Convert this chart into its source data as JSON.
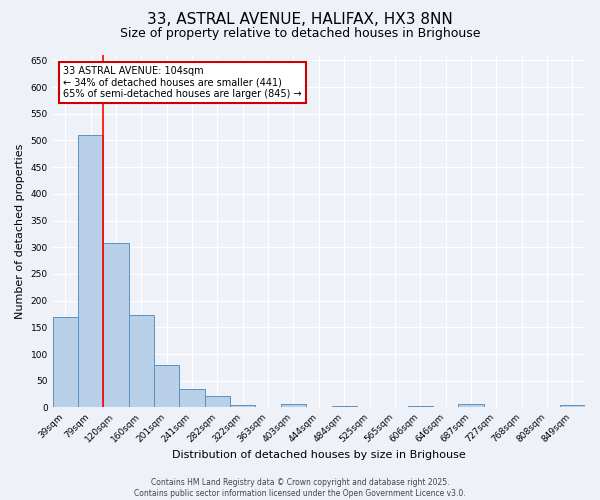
{
  "title": "33, ASTRAL AVENUE, HALIFAX, HX3 8NN",
  "subtitle": "Size of property relative to detached houses in Brighouse",
  "xlabel": "Distribution of detached houses by size in Brighouse",
  "ylabel": "Number of detached properties",
  "categories": [
    "39sqm",
    "79sqm",
    "120sqm",
    "160sqm",
    "201sqm",
    "241sqm",
    "282sqm",
    "322sqm",
    "363sqm",
    "403sqm",
    "444sqm",
    "484sqm",
    "525sqm",
    "565sqm",
    "606sqm",
    "646sqm",
    "687sqm",
    "727sqm",
    "768sqm",
    "808sqm",
    "849sqm"
  ],
  "values": [
    170,
    510,
    308,
    174,
    80,
    34,
    22,
    4,
    0,
    6,
    0,
    2,
    0,
    0,
    2,
    0,
    6,
    0,
    0,
    0,
    5
  ],
  "bar_color": "#b8d0e8",
  "bar_edge_color": "#5a90c0",
  "red_line_x": 1.5,
  "annotation_text": "33 ASTRAL AVENUE: 104sqm\n← 34% of detached houses are smaller (441)\n65% of semi-detached houses are larger (845) →",
  "annotation_box_color": "#ffffff",
  "annotation_box_edge_color": "#cc0000",
  "ylim": [
    0,
    660
  ],
  "yticks": [
    0,
    50,
    100,
    150,
    200,
    250,
    300,
    350,
    400,
    450,
    500,
    550,
    600,
    650
  ],
  "background_color": "#eef2f8",
  "grid_color": "#ffffff",
  "title_fontsize": 11,
  "subtitle_fontsize": 9,
  "axis_fontsize": 8,
  "tick_fontsize": 6.5,
  "footer_text": "Contains HM Land Registry data © Crown copyright and database right 2025.\nContains public sector information licensed under the Open Government Licence v3.0."
}
